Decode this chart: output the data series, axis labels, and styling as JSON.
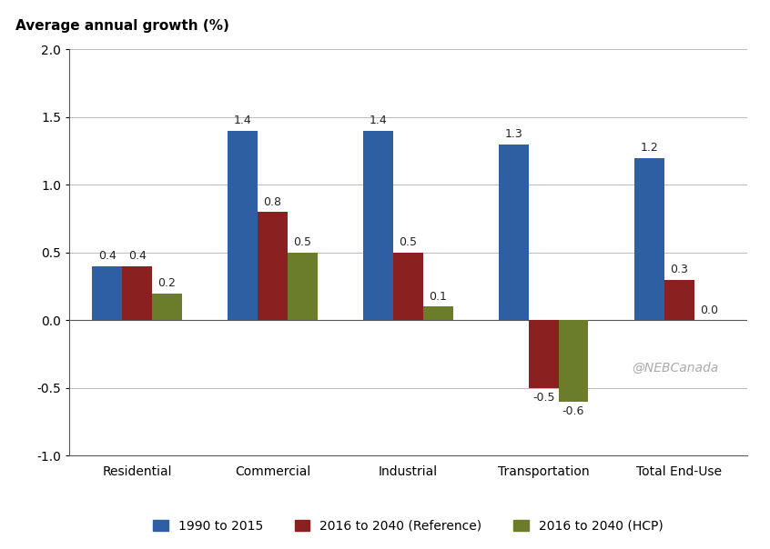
{
  "categories": [
    "Residential",
    "Commercial",
    "Industrial",
    "Transportation",
    "Total End-Use"
  ],
  "series": [
    {
      "label": "1990 to 2015",
      "color": "#2E5FA3",
      "values": [
        0.4,
        1.4,
        1.4,
        1.3,
        1.2
      ]
    },
    {
      "label": "2016 to 2040 (Reference)",
      "color": "#8B2020",
      "values": [
        0.4,
        0.8,
        0.5,
        -0.5,
        0.3
      ]
    },
    {
      "label": "2016 to 2040 (HCP)",
      "color": "#6B7C2B",
      "values": [
        0.2,
        0.5,
        0.1,
        -0.6,
        0.0
      ]
    }
  ],
  "ylabel": "Average annual growth (%)",
  "ylim": [
    -1.0,
    2.0
  ],
  "yticks": [
    -1.0,
    -0.5,
    0.0,
    0.5,
    1.0,
    1.5,
    2.0
  ],
  "watermark": "@NEBCanada",
  "background_color": "#ffffff",
  "bar_width": 0.22,
  "label_fontsize": 9,
  "tick_fontsize": 10,
  "ylabel_fontsize": 11,
  "legend_fontsize": 10
}
